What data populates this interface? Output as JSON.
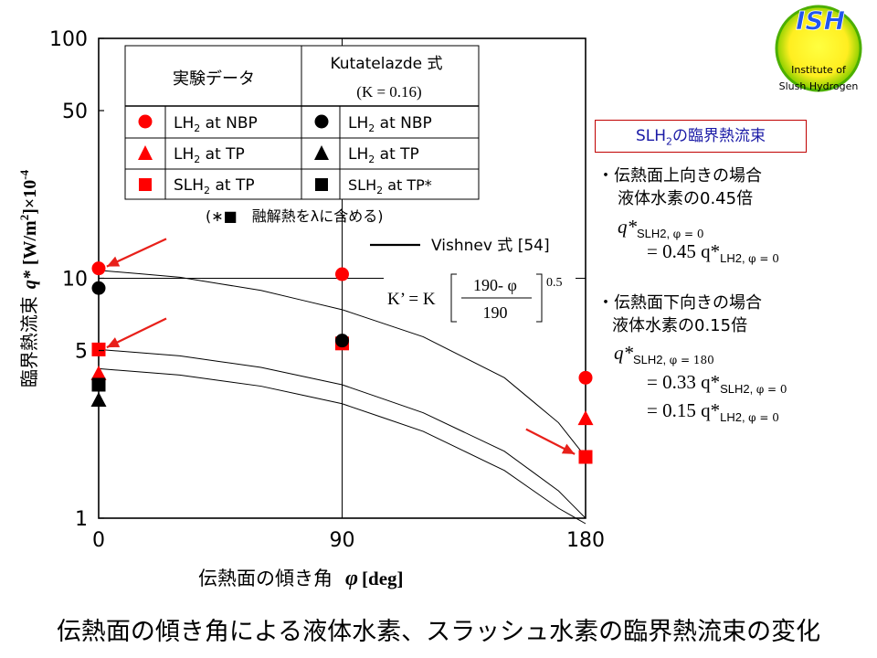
{
  "chart_data": {
    "type": "scatter",
    "title": "",
    "xlabel_text": "伝熱面の傾き角",
    "xlabel_symbol": "φ",
    "xlabel_unit": "[deg]",
    "ylabel_text": "臨界熱流束",
    "ylabel_symbol": "q*",
    "ylabel_unit": "[W/m",
    "ylabel_unit_sup": "2",
    "ylabel_unit_tail": "]×10",
    "ylabel_exp": "-4",
    "y_scale": "log",
    "xlim": [
      0,
      180
    ],
    "ylim": [
      1,
      100
    ],
    "x_ticks": [
      "0",
      "90",
      "180"
    ],
    "y_ticks": [
      "1",
      "5",
      "10",
      "50",
      "100"
    ],
    "legend": {
      "header_exp": "実験データ",
      "header_model": "Kutatelazde  式",
      "header_model_sub": "(K = 0.16)",
      "rows": [
        {
          "marker": "circle",
          "exp_label": "LH",
          "exp_sub": "2",
          "exp_tail": " at NBP",
          "model_label": "LH",
          "model_sub": "2",
          "model_tail": " at NBP"
        },
        {
          "marker": "triangle",
          "exp_label": "LH",
          "exp_sub": "2",
          "exp_tail": " at TP",
          "model_label": "LH",
          "model_sub": "2",
          "model_tail": " at TP"
        },
        {
          "marker": "square",
          "exp_label": "SLH",
          "exp_sub": "2",
          "exp_tail": " at TP",
          "model_label": "SLH",
          "model_sub": "2",
          "model_tail": " at TP*"
        }
      ],
      "footnote": "(∗■　融解熱をλに含める)"
    },
    "vishnev_label": "Vishnev 式 [54]",
    "formula": {
      "lhs": "K’ = K",
      "num": "190- φ",
      "den": "190",
      "exp": "0.5"
    },
    "colors": {
      "experiment": "#ff0000",
      "model": "#000000"
    },
    "series": [
      {
        "name": "LH2 at NBP",
        "group": "experiment",
        "marker": "circle",
        "x": [
          0,
          90,
          180
        ],
        "y": [
          11.0,
          10.4,
          3.85
        ]
      },
      {
        "name": "LH2 at TP",
        "group": "experiment",
        "marker": "triangle",
        "x": [
          0,
          180
        ],
        "y": [
          4.0,
          2.6
        ]
      },
      {
        "name": "SLH2 at TP",
        "group": "experiment",
        "marker": "square",
        "x": [
          0,
          90,
          180
        ],
        "y": [
          5.05,
          5.35,
          1.8
        ]
      },
      {
        "name": "LH2 at NBP",
        "group": "model",
        "marker": "circle",
        "x": [
          0,
          90
        ],
        "y": [
          9.1,
          5.5
        ]
      },
      {
        "name": "LH2 at TP",
        "group": "model",
        "marker": "triangle",
        "x": [
          0
        ],
        "y": [
          3.1
        ]
      },
      {
        "name": "SLH2 at TP*",
        "group": "model",
        "marker": "square",
        "x": [
          0
        ],
        "y": [
          3.6
        ]
      }
    ],
    "curves": [
      {
        "x": [
          0,
          30,
          60,
          90,
          120,
          150,
          170,
          180
        ],
        "y": [
          10.8,
          10.1,
          8.9,
          7.4,
          5.7,
          3.85,
          2.5,
          1.8
        ]
      },
      {
        "x": [
          0,
          30,
          60,
          90,
          120,
          150,
          170,
          180
        ],
        "y": [
          5.05,
          4.75,
          4.25,
          3.6,
          2.75,
          1.9,
          1.3,
          1.0
        ]
      },
      {
        "x": [
          0,
          30,
          60,
          90,
          120,
          150,
          170,
          180
        ],
        "y": [
          4.2,
          3.95,
          3.55,
          3.0,
          2.3,
          1.58,
          1.1,
          0.8
        ]
      }
    ],
    "arrows": [
      {
        "from": [
          25,
          14.6
        ],
        "to": [
          3,
          11.2
        ]
      },
      {
        "from": [
          25,
          6.8
        ],
        "to": [
          3,
          5.15
        ]
      },
      {
        "from": [
          158,
          2.35
        ],
        "to": [
          176,
          1.85
        ]
      }
    ]
  },
  "side_notes": {
    "box_text": "SLH",
    "box_sub": "2",
    "box_tail": "の臨界熱流束",
    "up_title": "・伝熱面上向きの場合",
    "up_line2": "液体水素の0.45倍",
    "up_eq1_lhs": "q*",
    "up_eq1_sub": "SLH2, ",
    "up_eq1_phi": "φ = 0",
    "up_eq2": "= 0.45 q*",
    "up_eq2_sub": "LH2, ",
    "up_eq2_phi": "φ = 0",
    "down_title": "・伝熱面下向きの場合",
    "down_line2": "液体水素の0.15倍",
    "down_eq1_lhs": "q*",
    "down_eq1_sub": "SLH2, ",
    "down_eq1_phi": "φ = 180",
    "down_eq2": "= 0.33 q*",
    "down_eq2_sub": "SLH2, ",
    "down_eq2_phi": "φ = 0",
    "down_eq3": "= 0.15 q*",
    "down_eq3_sub": "LH2, ",
    "down_eq3_phi": "φ = 0"
  },
  "logo": {
    "top": "ISH",
    "line1": "Institute of",
    "line2": "Slush Hydrogen"
  },
  "caption": "伝熱面の傾き角による液体水素、スラッシュ水素の臨界熱流束の変化"
}
